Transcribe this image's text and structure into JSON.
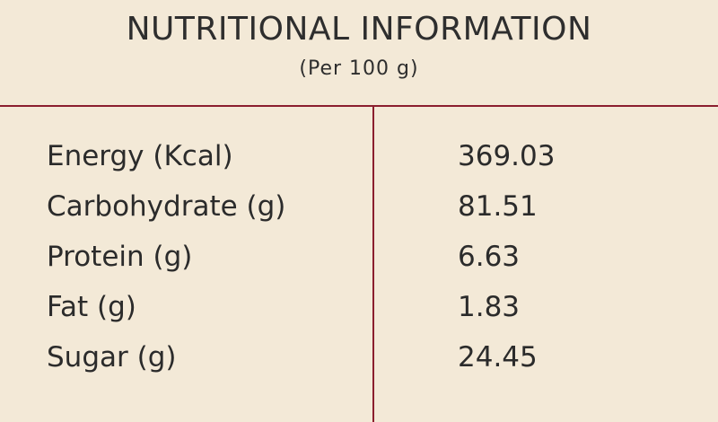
{
  "header": {
    "title": "NUTRITIONAL INFORMATION",
    "subtitle": "(Per 100 g)"
  },
  "colors": {
    "background": "#f3e9d7",
    "divider": "#8b1e2e",
    "text": "#2b2b2b"
  },
  "rows": [
    {
      "label": "Energy (Kcal)",
      "value": "369.03"
    },
    {
      "label": "Carbohydrate (g)",
      "value": "81.51"
    },
    {
      "label": "Protein (g)",
      "value": "6.63"
    },
    {
      "label": "Fat (g)",
      "value": "1.83"
    },
    {
      "label": "Sugar (g)",
      "value": "24.45"
    }
  ]
}
